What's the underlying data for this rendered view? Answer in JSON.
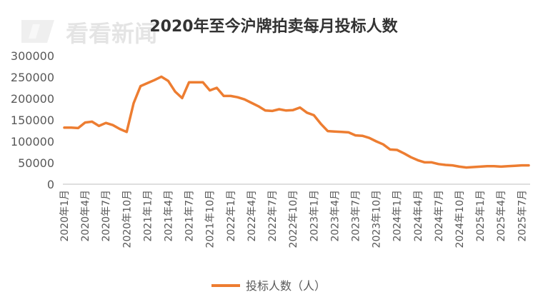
{
  "watermark": "看看新闻",
  "chart_data": {
    "type": "line",
    "title": "2020年至今沪牌拍卖每月投标人数",
    "xlabel": "",
    "ylabel": "",
    "ylim": [
      0,
      300000
    ],
    "yticks": [
      0,
      50000,
      100000,
      150000,
      200000,
      250000,
      300000
    ],
    "ytick_labels": [
      "0",
      "50000",
      "100000",
      "150000",
      "200000",
      "250000",
      "300000"
    ],
    "grid": false,
    "legend_position": "bottom",
    "color": "#ED7D31",
    "categories": [
      "2020年1月",
      "2020年2月",
      "2020年3月",
      "2020年4月",
      "2020年5月",
      "2020年6月",
      "2020年7月",
      "2020年8月",
      "2020年9月",
      "2020年10月",
      "2020年11月",
      "2020年12月",
      "2021年1月",
      "2021年2月",
      "2021年3月",
      "2021年4月",
      "2021年5月",
      "2021年6月",
      "2021年7月",
      "2021年8月",
      "2021年9月",
      "2021年10月",
      "2021年11月",
      "2021年12月",
      "2022年1月",
      "2022年2月",
      "2022年3月",
      "2022年4月",
      "2022年5月",
      "2022年6月",
      "2022年7月",
      "2022年8月",
      "2022年9月",
      "2022年10月",
      "2022年11月",
      "2022年12月",
      "2023年1月",
      "2023年2月",
      "2023年3月",
      "2023年4月",
      "2023年5月",
      "2023年6月",
      "2023年7月",
      "2023年8月",
      "2023年9月",
      "2023年10月",
      "2023年11月",
      "2023年12月",
      "2024年1月",
      "2024年2月",
      "2024年3月",
      "2024年4月",
      "2024年5月",
      "2024年6月",
      "2024年7月",
      "2024年8月",
      "2024年9月",
      "2024年10月",
      "2024年11月",
      "2024年12月",
      "2025年1月",
      "2025年2月",
      "2025年3月",
      "2025年4月",
      "2025年5月",
      "2025年6月",
      "2025年7月",
      "2025年8月"
    ],
    "tick_labels": [
      "2020年1月",
      "2020年4月",
      "2020年7月",
      "2020年10月",
      "2021年1月",
      "2021年4月",
      "2021年7月",
      "2021年10月",
      "2022年1月",
      "2022年4月",
      "2022年7月",
      "2022年10月",
      "2023年1月",
      "2023年4月",
      "2023年7月",
      "2023年10月",
      "2024年1月",
      "2024年4月",
      "2024年7月",
      "2024年10月",
      "2025年1月",
      "2025年4月",
      "2025年7月"
    ],
    "series": [
      {
        "name": "投标人数（人）",
        "values": [
          132000,
          132000,
          131000,
          144000,
          146000,
          136000,
          143000,
          138000,
          129000,
          122000,
          189000,
          229000,
          236000,
          243000,
          251000,
          241000,
          216000,
          201000,
          238000,
          238000,
          238000,
          219000,
          225000,
          206000,
          206000,
          203000,
          198000,
          190000,
          182000,
          172000,
          171000,
          175000,
          172000,
          173000,
          179000,
          167000,
          161000,
          141000,
          124000,
          123000,
          122000,
          121000,
          114000,
          113000,
          108000,
          100000,
          93000,
          81000,
          80000,
          72000,
          63000,
          56000,
          51000,
          51000,
          47000,
          45000,
          44000,
          41000,
          39000,
          40000,
          41000,
          42000,
          42000,
          41000,
          42000,
          43000,
          44000,
          44000
        ]
      }
    ]
  }
}
